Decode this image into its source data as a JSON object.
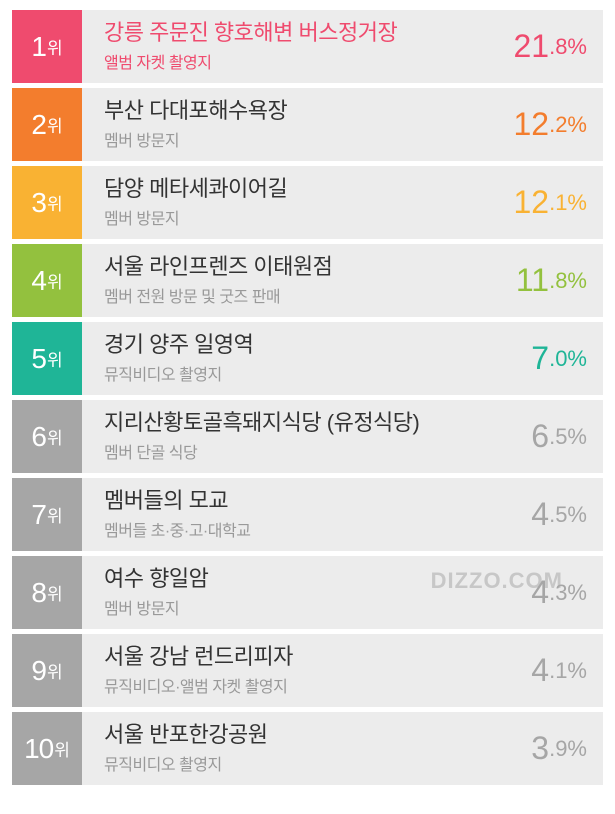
{
  "watermark": "DIZZO.COM",
  "rank_suffix": "위",
  "items": [
    {
      "rank": "1",
      "title": "강릉 주문진 향호해변 버스정거장",
      "subtitle": "앨범 자켓 촬영지",
      "pct_int": "21",
      "pct_dec": ".8%",
      "badge_color": "#ef4b6e",
      "accent_color": "#ef4b6e",
      "subtitle_color": "#ef4b6e"
    },
    {
      "rank": "2",
      "title": "부산 다대포해수욕장",
      "subtitle": "멤버 방문지",
      "pct_int": "12",
      "pct_dec": ".2%",
      "badge_color": "#f37d2d",
      "accent_color": "#f37d2d",
      "subtitle_color": "#999999"
    },
    {
      "rank": "3",
      "title": "담양 메타세콰이어길",
      "subtitle": "멤버 방문지",
      "pct_int": "12",
      "pct_dec": ".1%",
      "badge_color": "#f9b233",
      "accent_color": "#f9b233",
      "subtitle_color": "#999999"
    },
    {
      "rank": "4",
      "title": "서울 라인프렌즈 이태원점",
      "subtitle": "멤버 전원 방문 및 굿즈 판매",
      "pct_int": "11",
      "pct_dec": ".8%",
      "badge_color": "#93c13e",
      "accent_color": "#93c13e",
      "subtitle_color": "#999999"
    },
    {
      "rank": "5",
      "title": "경기 양주 일영역",
      "subtitle": "뮤직비디오 촬영지",
      "pct_int": "7",
      "pct_dec": ".0%",
      "badge_color": "#1fb597",
      "accent_color": "#1fb597",
      "subtitle_color": "#999999"
    },
    {
      "rank": "6",
      "title": "지리산황토골흑돼지식당 (유정식당)",
      "subtitle": "멤버 단골 식당",
      "pct_int": "6",
      "pct_dec": ".5%",
      "badge_color": "#a6a6a6",
      "accent_color": "#a6a6a6",
      "subtitle_color": "#999999"
    },
    {
      "rank": "7",
      "title": "멤버들의 모교",
      "subtitle": "멤버들 초·중·고·대학교",
      "pct_int": "4",
      "pct_dec": ".5%",
      "badge_color": "#a6a6a6",
      "accent_color": "#a6a6a6",
      "subtitle_color": "#999999"
    },
    {
      "rank": "8",
      "title": "여수 향일암",
      "subtitle": "멤버 방문지",
      "pct_int": "4",
      "pct_dec": ".3%",
      "badge_color": "#a6a6a6",
      "accent_color": "#a6a6a6",
      "subtitle_color": "#999999"
    },
    {
      "rank": "9",
      "title": "서울 강남 런드리피자",
      "subtitle": "뮤직비디오·앨범 자켓 촬영지",
      "pct_int": "4",
      "pct_dec": ".1%",
      "badge_color": "#a6a6a6",
      "accent_color": "#a6a6a6",
      "subtitle_color": "#999999"
    },
    {
      "rank": "10",
      "title": "서울 반포한강공원",
      "subtitle": "뮤직비디오 촬영지",
      "pct_int": "3",
      "pct_dec": ".9%",
      "badge_color": "#a6a6a6",
      "accent_color": "#a6a6a6",
      "subtitle_color": "#999999"
    }
  ]
}
